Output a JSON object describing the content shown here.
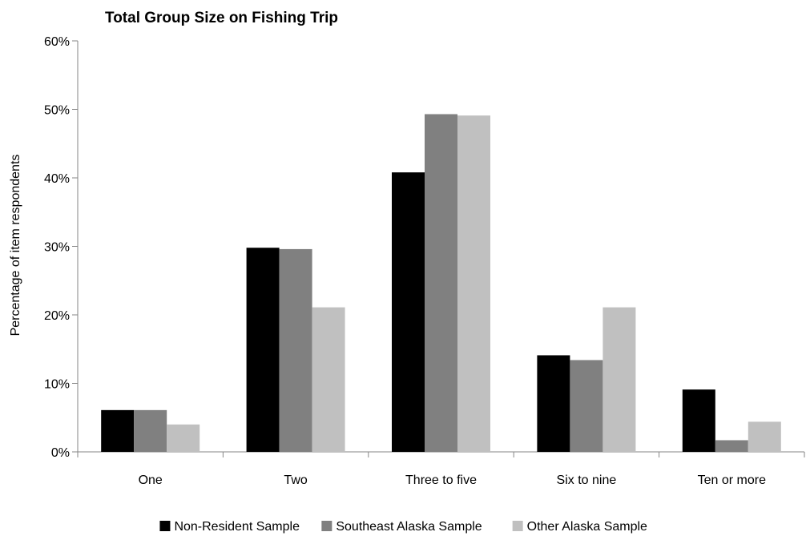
{
  "chart_data": {
    "type": "bar",
    "title": "Total Group Size on Fishing Trip",
    "xlabel": "",
    "ylabel": "Percentage of item respondents",
    "categories": [
      "One",
      "Two",
      "Three to five",
      "Six to nine",
      "Ten or more"
    ],
    "series": [
      {
        "name": "Non-Resident Sample",
        "color": "#000000",
        "values": [
          6.1,
          29.8,
          40.8,
          14.1,
          9.1
        ]
      },
      {
        "name": "Southeast Alaska Sample",
        "color": "#808080",
        "values": [
          6.1,
          29.6,
          49.3,
          13.4,
          1.7
        ]
      },
      {
        "name": "Other Alaska Sample",
        "color": "#c0c0c0",
        "values": [
          4.0,
          21.1,
          49.1,
          21.1,
          4.4
        ]
      }
    ],
    "ylim": [
      0,
      60
    ],
    "yticks": [
      0,
      10,
      20,
      30,
      40,
      50,
      60
    ],
    "ytick_labels": [
      "0%",
      "10%",
      "20%",
      "30%",
      "40%",
      "50%",
      "60%"
    ],
    "grid": false,
    "legend_position": "bottom",
    "colors": {
      "axis": "#868686"
    }
  }
}
